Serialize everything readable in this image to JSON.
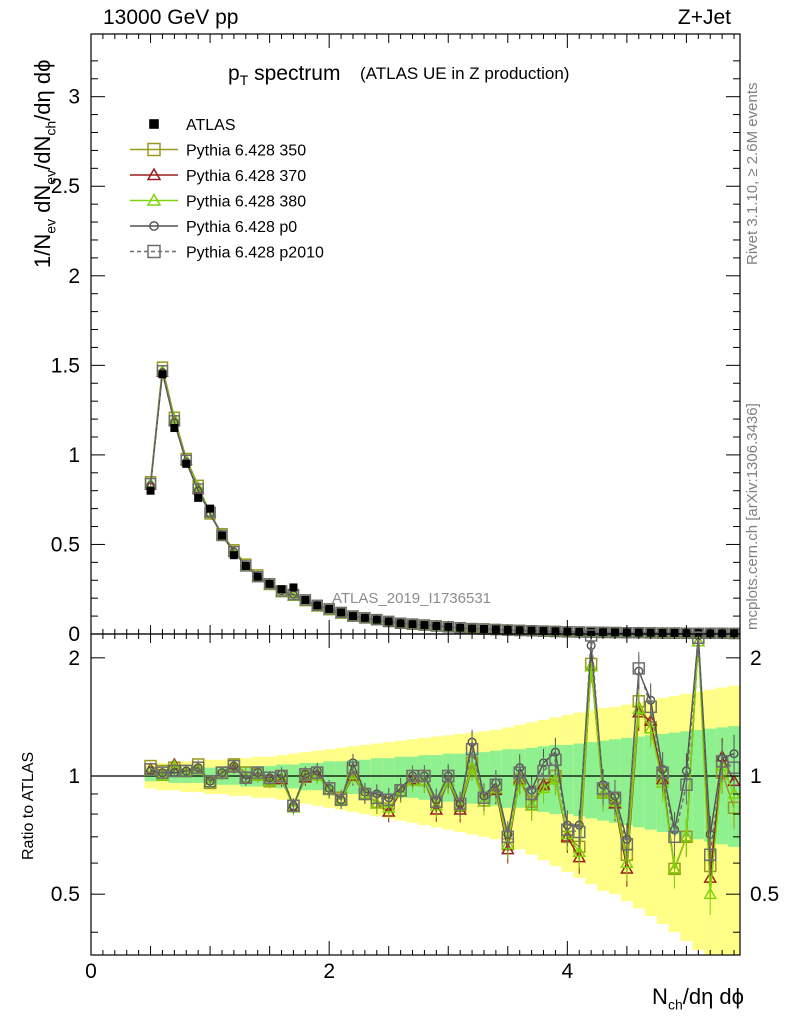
{
  "header": {
    "left": "13000 GeV pp",
    "right": "Z+Jet"
  },
  "title": {
    "main_prefix": "p",
    "main_sub": "T",
    "main_rest": " spectrum",
    "sub": "(ATLAS UE in Z production)"
  },
  "side_labels": {
    "rivet": "Rivet 3.1.10, ≥ 2.6M events",
    "mcplots": "mcplots.cern.ch [arXiv:1306.3436]"
  },
  "analysis_id": "ATLAS_2019_I1736531",
  "ylabel_parts": [
    "1/N",
    "ev",
    " dN",
    "ev",
    "/dN",
    "ch",
    "/dη dϕ"
  ],
  "ylabel_ratio": "Ratio to ATLAS",
  "xlabel_parts": [
    "N",
    "ch",
    "/dη dϕ"
  ],
  "colors": {
    "data": "#000000",
    "p350": "#9a9a1e",
    "p370": "#9b1c1c",
    "p380": "#7dd40a",
    "p0": "#505050",
    "p2010": "#6e6e6e",
    "band_inner": "#8ef08e",
    "band_outer": "#ffff88"
  },
  "chart_data": [
    {
      "type": "line",
      "panel": "main",
      "xlim": [
        0,
        5.45
      ],
      "ylim": [
        0,
        3.35
      ],
      "yticks": [
        "0",
        "0.5",
        "1",
        "1.5",
        "2",
        "2.5",
        "3"
      ],
      "x": [
        0.5,
        0.6,
        0.7,
        0.8,
        0.9,
        1.0,
        1.1,
        1.2,
        1.3,
        1.4,
        1.5,
        1.6,
        1.7,
        1.8,
        1.9,
        2.0,
        2.1,
        2.2,
        2.3,
        2.4,
        2.5,
        2.6,
        2.7,
        2.8,
        2.9,
        3.0,
        3.1,
        3.2,
        3.3,
        3.4,
        3.5,
        3.6,
        3.7,
        3.8,
        3.9,
        4.0,
        4.1,
        4.2,
        4.3,
        4.4,
        4.5,
        4.6,
        4.7,
        4.8,
        4.9,
        5.0,
        5.1,
        5.2,
        5.3,
        5.4
      ],
      "legend": [
        "ATLAS",
        "Pythia 6.428 350",
        "Pythia 6.428 370",
        "Pythia 6.428 380",
        "Pythia 6.428 p0",
        "Pythia 6.428 p2010"
      ],
      "series": [
        {
          "name": "ATLAS",
          "values": [
            0.8,
            1.45,
            1.15,
            0.95,
            0.76,
            0.7,
            0.55,
            0.44,
            0.38,
            0.32,
            0.28,
            0.25,
            0.26,
            0.19,
            0.16,
            0.14,
            0.12,
            0.1,
            0.09,
            0.08,
            0.07,
            0.06,
            0.055,
            0.05,
            0.045,
            0.04,
            0.035,
            0.03,
            0.028,
            0.026,
            0.023,
            0.021,
            0.019,
            0.017,
            0.015,
            0.013,
            0.012,
            0.011,
            0.01,
            0.009,
            0.008,
            0.008,
            0.007,
            0.006,
            0.006,
            0.005,
            0.005,
            0.004,
            0.004,
            0.004
          ]
        },
        {
          "name": "Pythia 6.428 350",
          "values": [
            0.85,
            1.49,
            1.21,
            0.98,
            0.83,
            0.67,
            0.56,
            0.47,
            0.39,
            0.33,
            0.28,
            0.24,
            0.22,
            0.19,
            0.16,
            0.14,
            0.12,
            0.1,
            0.09,
            0.08,
            0.07,
            0.06,
            0.055,
            0.05,
            0.045,
            0.04,
            0.035,
            0.03,
            0.028,
            0.025,
            0.022,
            0.02,
            0.018,
            0.016,
            0.014,
            0.012,
            0.011,
            0.01,
            0.009,
            0.008,
            0.007,
            0.007,
            0.006,
            0.005,
            0.005,
            0.004,
            0.004,
            0.004,
            0.004,
            0.003
          ]
        },
        {
          "name": "Pythia 6.428 370",
          "values": [
            0.83,
            1.46,
            1.19,
            0.97,
            0.81,
            0.68,
            0.55,
            0.46,
            0.38,
            0.32,
            0.27,
            0.23,
            0.21,
            0.18,
            0.15,
            0.13,
            0.11,
            0.095,
            0.085,
            0.075,
            0.065,
            0.058,
            0.052,
            0.047,
            0.042,
            0.037,
            0.032,
            0.028,
            0.025,
            0.022,
            0.02,
            0.018,
            0.016,
            0.014,
            0.012,
            0.011,
            0.009,
            0.009,
            0.008,
            0.007,
            0.006,
            0.006,
            0.005,
            0.005,
            0.004,
            0.004,
            0.004,
            0.003,
            0.003,
            0.003
          ]
        },
        {
          "name": "Pythia 6.428 380",
          "values": [
            0.84,
            1.47,
            1.2,
            0.97,
            0.82,
            0.68,
            0.55,
            0.46,
            0.38,
            0.32,
            0.27,
            0.23,
            0.21,
            0.18,
            0.15,
            0.13,
            0.11,
            0.096,
            0.086,
            0.076,
            0.066,
            0.058,
            0.052,
            0.047,
            0.042,
            0.037,
            0.032,
            0.028,
            0.025,
            0.022,
            0.02,
            0.018,
            0.016,
            0.014,
            0.012,
            0.011,
            0.009,
            0.009,
            0.008,
            0.007,
            0.006,
            0.006,
            0.005,
            0.005,
            0.004,
            0.004,
            0.004,
            0.003,
            0.003,
            0.003
          ]
        },
        {
          "name": "Pythia 6.428 p0",
          "values": [
            0.83,
            1.46,
            1.18,
            0.96,
            0.8,
            0.67,
            0.55,
            0.46,
            0.38,
            0.32,
            0.28,
            0.24,
            0.22,
            0.19,
            0.16,
            0.14,
            0.12,
            0.1,
            0.09,
            0.08,
            0.07,
            0.06,
            0.055,
            0.05,
            0.045,
            0.04,
            0.035,
            0.03,
            0.028,
            0.025,
            0.022,
            0.02,
            0.018,
            0.016,
            0.014,
            0.012,
            0.011,
            0.01,
            0.009,
            0.008,
            0.007,
            0.007,
            0.006,
            0.005,
            0.005,
            0.004,
            0.004,
            0.004,
            0.004,
            0.003
          ]
        },
        {
          "name": "Pythia 6.428 p2010",
          "values": [
            0.84,
            1.47,
            1.19,
            0.97,
            0.81,
            0.68,
            0.55,
            0.46,
            0.38,
            0.32,
            0.28,
            0.24,
            0.22,
            0.19,
            0.16,
            0.14,
            0.12,
            0.1,
            0.09,
            0.08,
            0.07,
            0.06,
            0.055,
            0.05,
            0.045,
            0.04,
            0.035,
            0.03,
            0.028,
            0.025,
            0.022,
            0.02,
            0.018,
            0.016,
            0.014,
            0.012,
            0.011,
            0.01,
            0.009,
            0.008,
            0.007,
            0.007,
            0.006,
            0.005,
            0.005,
            0.004,
            0.004,
            0.004,
            0.004,
            0.003
          ]
        }
      ]
    },
    {
      "type": "line",
      "panel": "ratio",
      "xlim": [
        0,
        5.45
      ],
      "ylim": [
        0.35,
        2.3
      ],
      "log_scale": true,
      "yticks": [
        "0.5",
        "1",
        "2"
      ],
      "xticks": [
        "0",
        "2",
        "4"
      ],
      "x": [
        0.5,
        0.6,
        0.7,
        0.8,
        0.9,
        1.0,
        1.1,
        1.2,
        1.3,
        1.4,
        1.5,
        1.6,
        1.7,
        1.8,
        1.9,
        2.0,
        2.1,
        2.2,
        2.3,
        2.4,
        2.5,
        2.6,
        2.7,
        2.8,
        2.9,
        3.0,
        3.1,
        3.2,
        3.3,
        3.4,
        3.5,
        3.6,
        3.7,
        3.8,
        3.9,
        4.0,
        4.1,
        4.2,
        4.3,
        4.4,
        4.5,
        4.6,
        4.7,
        4.8,
        4.9,
        5.0,
        5.1,
        5.2,
        5.3,
        5.4
      ],
      "band_inner": [
        0.03,
        0.03,
        0.04,
        0.04,
        0.04,
        0.05,
        0.05,
        0.05,
        0.06,
        0.06,
        0.06,
        0.07,
        0.07,
        0.08,
        0.08,
        0.09,
        0.09,
        0.1,
        0.1,
        0.11,
        0.11,
        0.12,
        0.12,
        0.13,
        0.13,
        0.14,
        0.14,
        0.15,
        0.15,
        0.16,
        0.17,
        0.17,
        0.18,
        0.19,
        0.2,
        0.2,
        0.21,
        0.22,
        0.23,
        0.24,
        0.25,
        0.26,
        0.27,
        0.28,
        0.29,
        0.3,
        0.31,
        0.32,
        0.33,
        0.34
      ],
      "band_outer": [
        0.07,
        0.08,
        0.08,
        0.09,
        0.09,
        0.1,
        0.1,
        0.11,
        0.11,
        0.12,
        0.12,
        0.13,
        0.14,
        0.15,
        0.16,
        0.17,
        0.18,
        0.19,
        0.2,
        0.21,
        0.22,
        0.23,
        0.24,
        0.25,
        0.26,
        0.27,
        0.28,
        0.29,
        0.3,
        0.31,
        0.33,
        0.35,
        0.37,
        0.39,
        0.41,
        0.43,
        0.45,
        0.47,
        0.49,
        0.5,
        0.52,
        0.54,
        0.56,
        0.58,
        0.6,
        0.62,
        0.64,
        0.66,
        0.68,
        0.7
      ],
      "series": [
        {
          "name": "Pythia 6.428 350",
          "values": [
            1.06,
            1.03,
            1.05,
            1.03,
            1.07,
            0.96,
            1.02,
            1.07,
            1.02,
            1.01,
            0.97,
            1.0,
            0.84,
            1.0,
            1.02,
            0.93,
            0.88,
            1.03,
            0.9,
            0.86,
            0.85,
            0.92,
            1.0,
            1.0,
            0.86,
            1.0,
            0.84,
            1.08,
            0.88,
            0.95,
            0.67,
            0.98,
            0.86,
            0.95,
            1.0,
            0.7,
            0.66,
            1.93,
            0.92,
            0.87,
            0.63,
            1.55,
            1.33,
            1.0,
            0.58,
            0.7,
            2.25,
            0.59,
            1.02,
            0.83
          ]
        },
        {
          "name": "Pythia 6.428 370",
          "values": [
            1.04,
            1.0,
            1.07,
            1.02,
            1.04,
            0.96,
            1.01,
            1.05,
            0.99,
            1.0,
            0.98,
            0.98,
            0.84,
            0.99,
            1.01,
            0.92,
            0.87,
            1.0,
            0.9,
            0.85,
            0.81,
            0.91,
            0.98,
            0.97,
            0.82,
            0.97,
            0.82,
            1.05,
            0.86,
            0.92,
            0.65,
            0.98,
            0.84,
            0.95,
            0.98,
            0.7,
            0.62,
            1.9,
            0.9,
            0.85,
            0.58,
            1.45,
            1.38,
            0.98,
            0.58,
            0.7,
            2.2,
            0.55,
            1.12,
            0.97
          ]
        },
        {
          "name": "Pythia 6.428 380",
          "values": [
            1.03,
            1.0,
            1.06,
            1.02,
            1.04,
            0.96,
            1.01,
            1.06,
            0.99,
            1.0,
            0.97,
            0.99,
            0.83,
            1.0,
            1.0,
            0.92,
            0.87,
            1.01,
            0.9,
            0.85,
            0.83,
            0.91,
            0.97,
            0.97,
            0.84,
            0.97,
            0.84,
            1.05,
            0.86,
            0.93,
            0.67,
            0.97,
            0.84,
            0.93,
            0.98,
            0.71,
            0.64,
            1.9,
            0.9,
            0.86,
            0.6,
            1.48,
            1.32,
            0.96,
            0.58,
            0.7,
            2.2,
            0.5,
            1.06,
            0.9
          ]
        },
        {
          "name": "Pythia 6.428 p0",
          "values": [
            1.03,
            1.02,
            1.02,
            1.03,
            1.05,
            0.97,
            1.02,
            1.06,
            0.98,
            1.02,
            0.99,
            1.01,
            0.84,
            1.01,
            1.03,
            0.93,
            0.87,
            1.08,
            0.91,
            0.9,
            0.88,
            0.93,
            1.0,
            1.0,
            0.87,
            1.0,
            0.85,
            1.22,
            0.89,
            0.96,
            0.71,
            1.05,
            0.92,
            1.08,
            1.15,
            0.75,
            0.75,
            2.15,
            0.95,
            0.89,
            0.69,
            1.85,
            1.56,
            1.04,
            0.73,
            1.03,
            2.28,
            0.71,
            1.11,
            1.14
          ]
        },
        {
          "name": "Pythia 6.428 p2010",
          "values": [
            1.04,
            1.02,
            1.03,
            1.03,
            1.05,
            0.97,
            1.02,
            1.06,
            0.99,
            1.02,
            0.99,
            1.0,
            0.84,
            1.01,
            1.02,
            0.93,
            0.87,
            1.05,
            0.9,
            0.88,
            0.87,
            0.92,
            1.0,
            1.0,
            0.86,
            1.0,
            0.85,
            1.17,
            0.88,
            0.95,
            0.7,
            1.02,
            0.9,
            1.03,
            1.1,
            0.73,
            0.72,
            2.28,
            0.93,
            0.88,
            0.67,
            1.88,
            1.5,
            1.02,
            0.7,
            0.95,
            2.25,
            0.63,
            1.09,
            1.05
          ]
        }
      ]
    }
  ]
}
